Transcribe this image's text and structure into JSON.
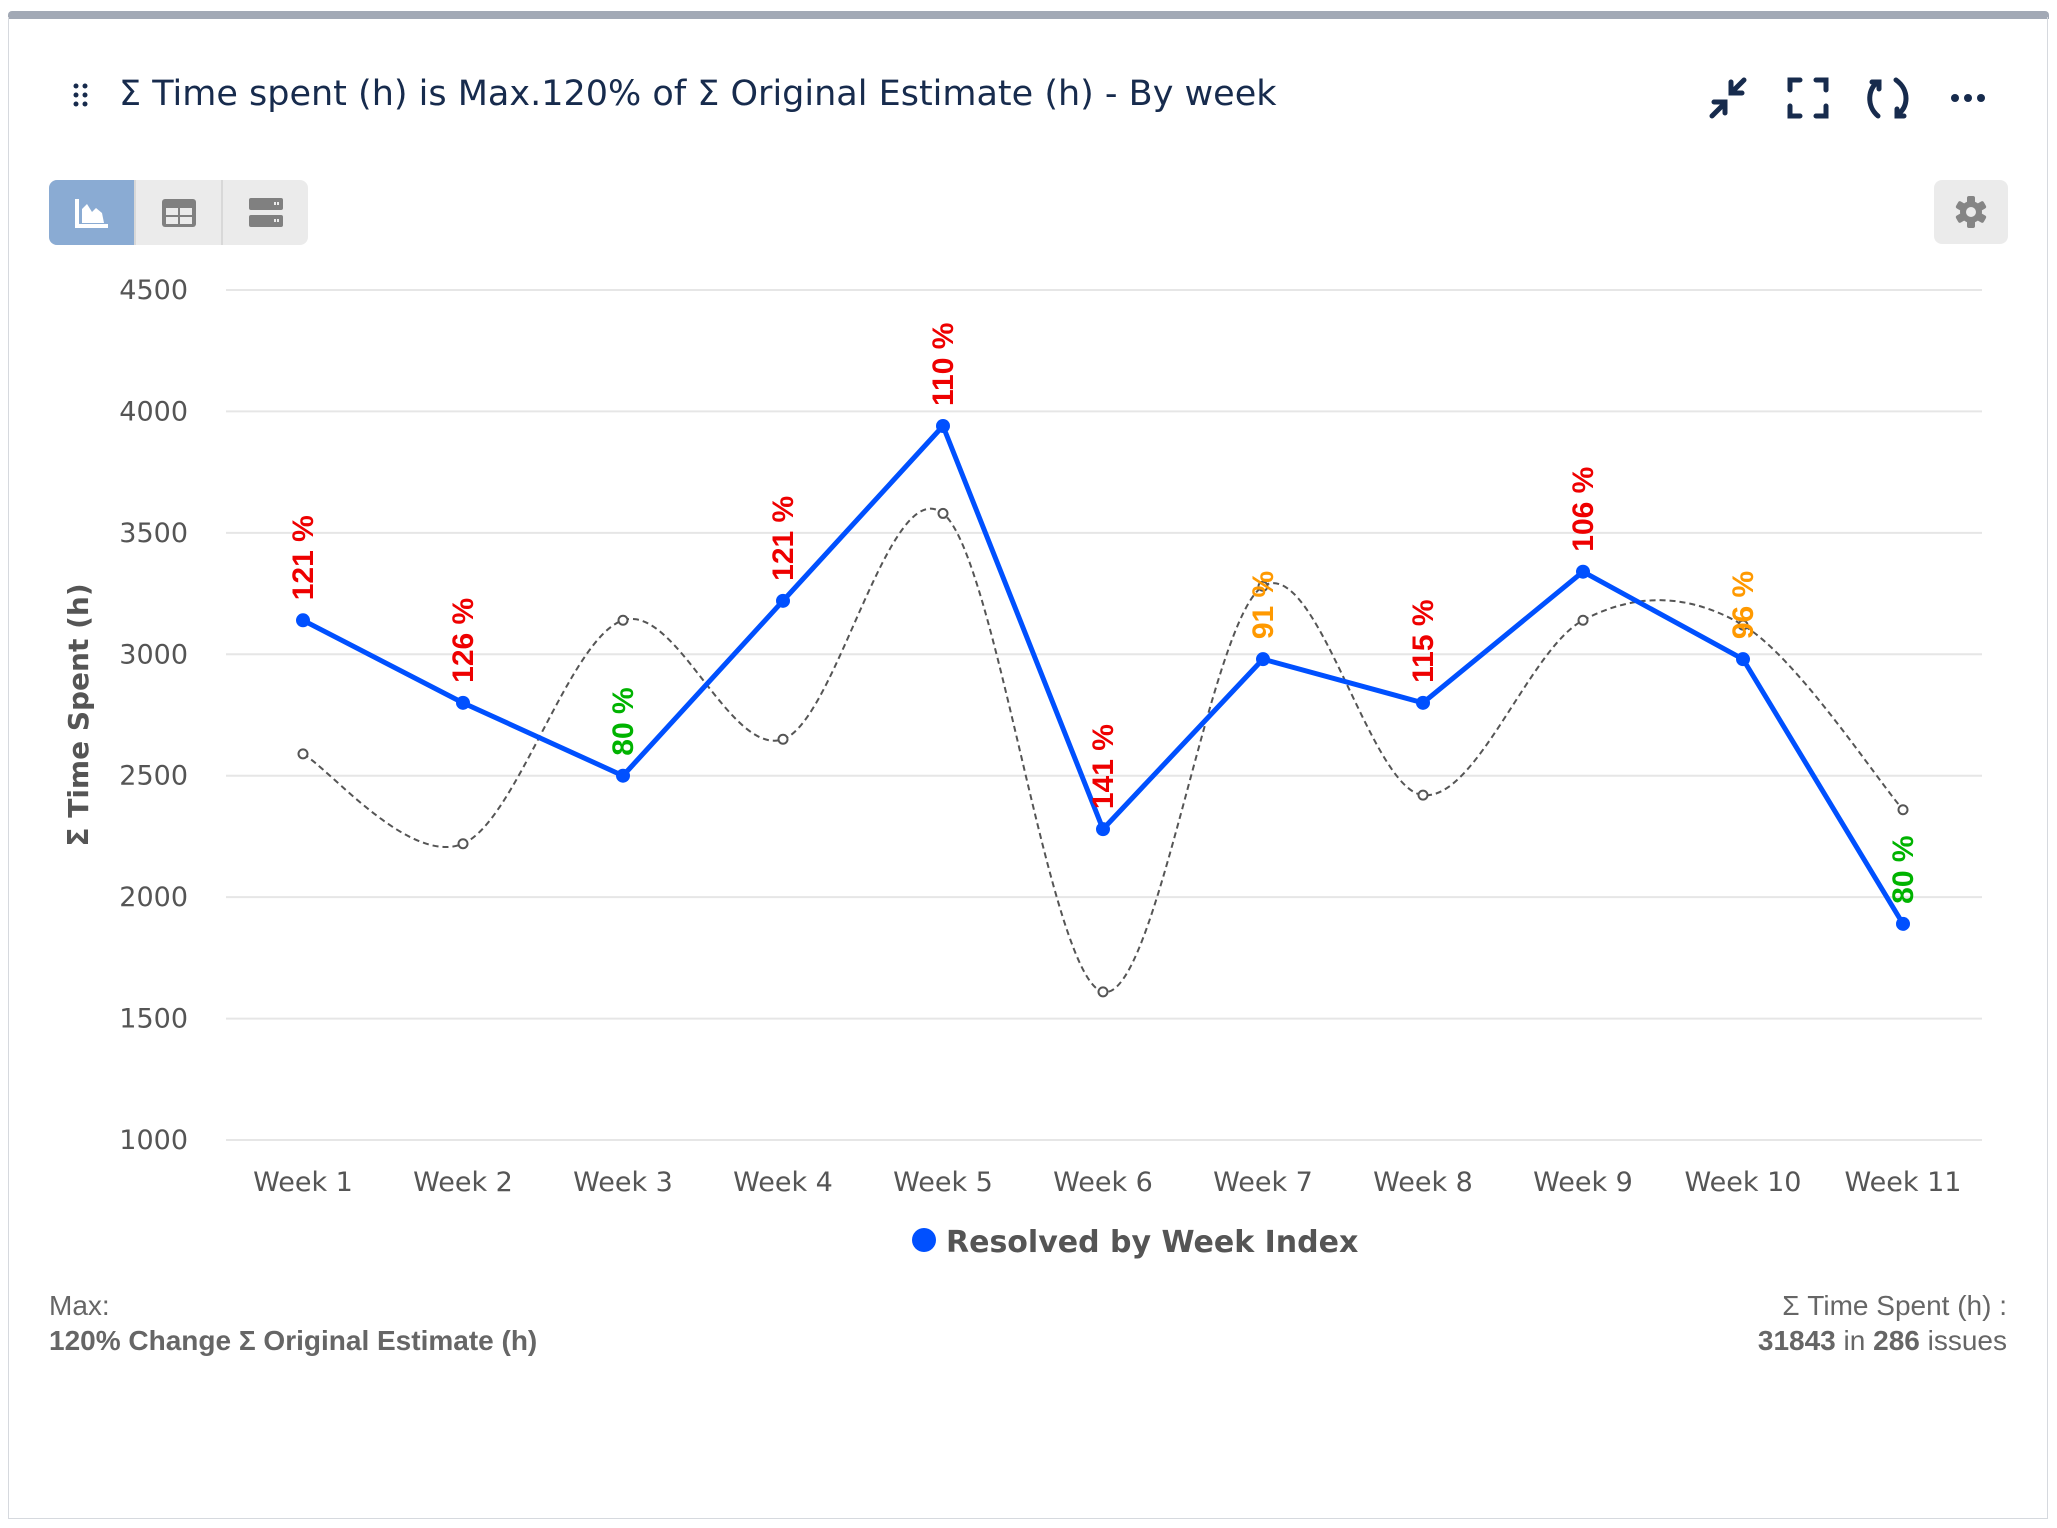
{
  "header": {
    "title": "Σ Time spent (h) is Max.120% of Σ Original Estimate (h) - By week",
    "icons": [
      "drag-handle-icon",
      "collapse-icon",
      "fullscreen-icon",
      "refresh-icon",
      "more-icon"
    ]
  },
  "view_toggle": {
    "options": [
      "chart-view",
      "table-view",
      "list-view"
    ],
    "active": "chart-view"
  },
  "chart_data": {
    "type": "line",
    "ylabel": "Σ Time Spent (h)",
    "ylim": [
      1000,
      4500
    ],
    "yticks": [
      1000,
      1500,
      2000,
      2500,
      3000,
      3500,
      4000,
      4500
    ],
    "grid": true,
    "legend_position": "bottom",
    "categories": [
      "Week 1",
      "Week 2",
      "Week 3",
      "Week 4",
      "Week 5",
      "Week 6",
      "Week 7",
      "Week 8",
      "Week 9",
      "Week 10",
      "Week 11"
    ],
    "series": [
      {
        "name": "Resolved by Week Index",
        "color": "#0050ff",
        "values": [
          3140,
          2800,
          2500,
          3220,
          3940,
          2280,
          2980,
          2800,
          3340,
          2980,
          1890
        ]
      },
      {
        "style": "dashed-spline",
        "color": "#555555",
        "values": [
          2590,
          2220,
          3140,
          2650,
          3580,
          1610,
          3280,
          2420,
          3140,
          3120,
          2360
        ]
      }
    ],
    "data_labels": [
      "121 %",
      "126 %",
      "80 %",
      "121 %",
      "110 %",
      "141 %",
      "91 %",
      "115 %",
      "106 %",
      "96 %",
      "80 %"
    ],
    "label_colors": [
      "#ee0000",
      "#ee0000",
      "#00b300",
      "#ee0000",
      "#ee0000",
      "#ee0000",
      "#ff9900",
      "#ee0000",
      "#ee0000",
      "#ff9900",
      "#00b300"
    ]
  },
  "footer": {
    "max_label": "Max:",
    "max_value": "120% Change Σ Original Estimate (h)",
    "total_label": "Σ Time Spent (h) :",
    "total_value": "31843",
    "total_in": " in ",
    "issue_count": "286",
    "issues_word": " issues"
  }
}
